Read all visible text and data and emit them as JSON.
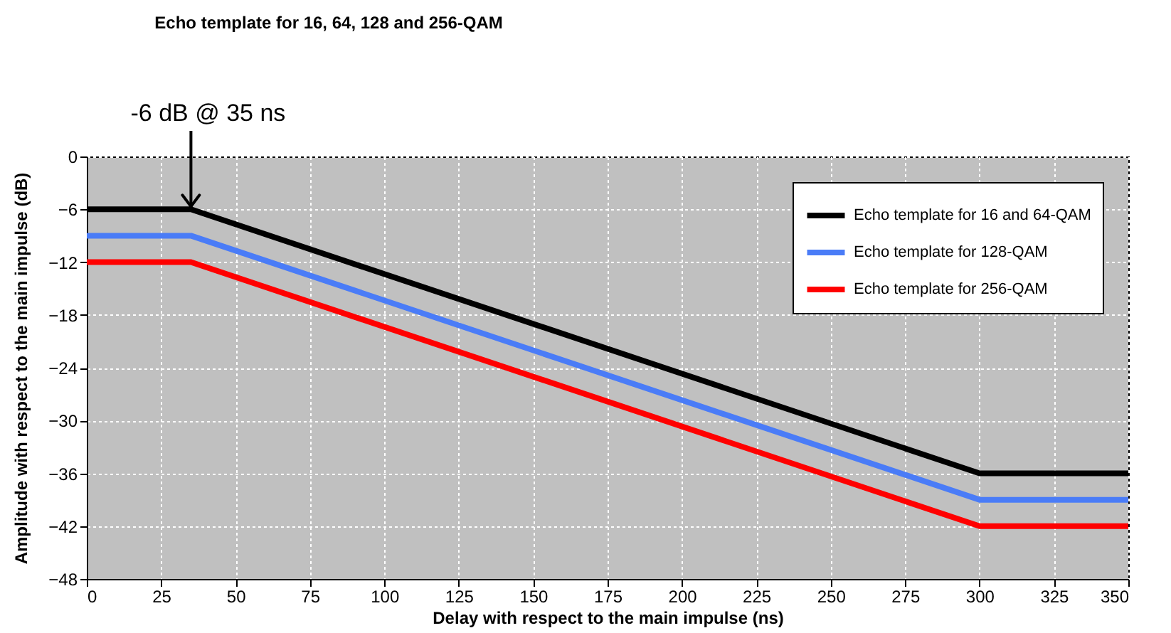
{
  "chart_data": {
    "type": "line",
    "title": "Echo template for 16, 64, 128 and 256-QAM",
    "xlabel": "Delay with respect to the main impulse (ns)",
    "ylabel": "Amplitude with respect to the main impulse (dB)",
    "x": [
      0,
      35,
      300,
      350
    ],
    "series": [
      {
        "name": "Echo template for 16 and 64-QAM",
        "color": "#000000",
        "values": [
          -6,
          -6,
          -36,
          -36
        ]
      },
      {
        "name": "Echo template for 128-QAM",
        "color": "#4a7cf7",
        "values": [
          -9,
          -9,
          -39,
          -39
        ]
      },
      {
        "name": "Echo template for 256-QAM",
        "color": "#ff0000",
        "values": [
          -12,
          -12,
          -42,
          -42
        ]
      }
    ],
    "xlim": [
      0,
      350
    ],
    "xticks": [
      0,
      25,
      50,
      75,
      100,
      125,
      150,
      175,
      200,
      225,
      250,
      275,
      300,
      325,
      350
    ],
    "ylim": [
      -48,
      0
    ],
    "yticks": [
      -48,
      -42,
      -36,
      -30,
      -24,
      -18,
      -12,
      -6,
      0
    ],
    "annotations": [
      {
        "text": "-6 dB @ 35 ns",
        "x": 35,
        "y": -6
      }
    ],
    "grid": true,
    "legend": "top right",
    "marker": "none",
    "line_style": "solid"
  }
}
